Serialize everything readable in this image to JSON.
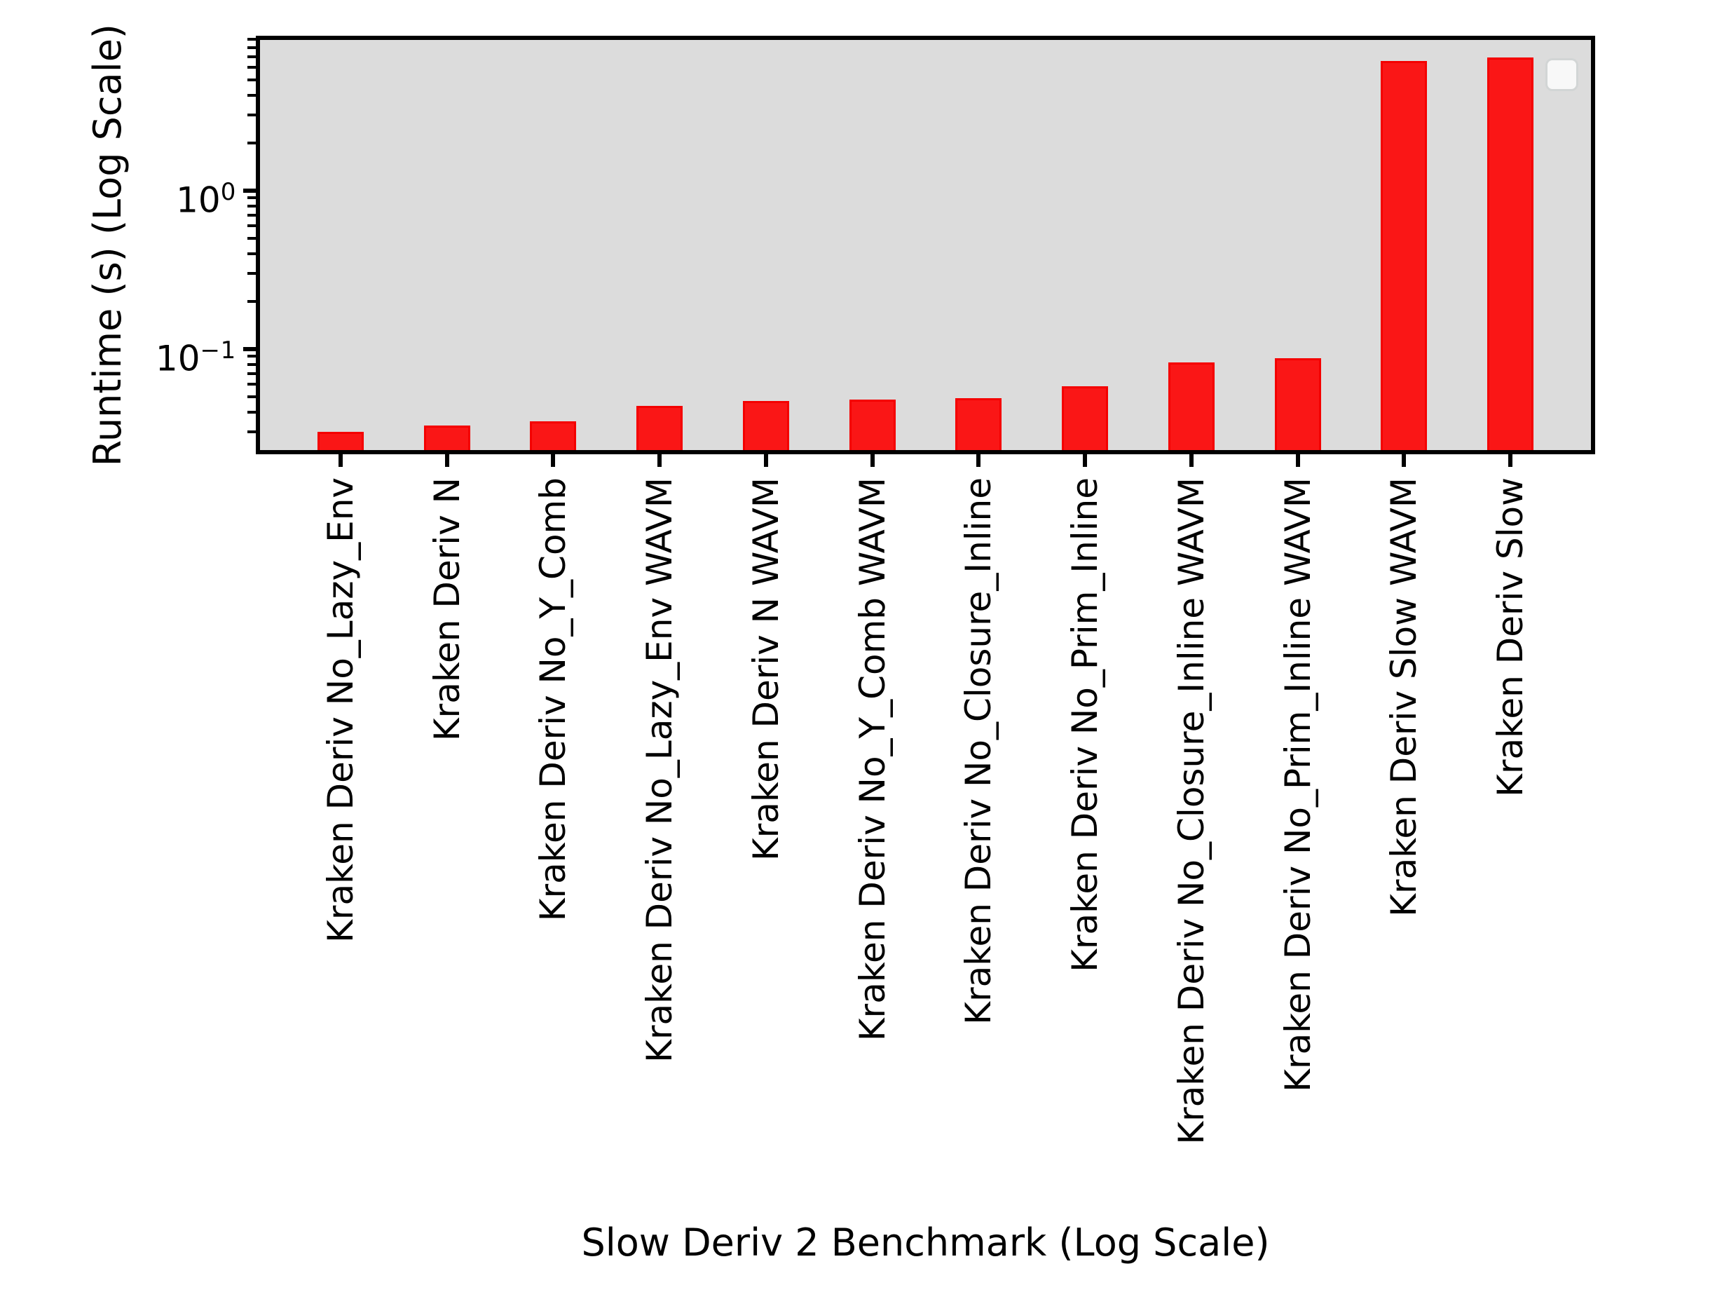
{
  "chart_data": {
    "type": "bar",
    "title": "",
    "xlabel": "Slow Deriv 2 Benchmark (Log Scale)",
    "ylabel": "Runtime (s) (Log Scale)",
    "yscale": "log",
    "ylim": [
      0.023,
      9.1
    ],
    "grid": false,
    "plot_background": "#dcdcdc",
    "bar_fill_color": "#fa1616",
    "bar_edge_color": "#f40000",
    "axis_color": "#000000",
    "legend": {
      "visible": true,
      "position": "upper right",
      "entries": []
    },
    "categories": [
      "Kraken Deriv No_Lazy_Env",
      "Kraken Deriv N",
      "Kraken Deriv No_Y_Comb",
      "Kraken Deriv No_Lazy_Env WAVM",
      "Kraken Deriv N WAVM",
      "Kraken Deriv No_Y_Comb WAVM",
      "Kraken Deriv No_Closure_Inline",
      "Kraken Deriv No_Prim_Inline",
      "Kraken Deriv No_Closure_Inline WAVM",
      "Kraken Deriv No_Prim_Inline WAVM",
      "Kraken Deriv Slow WAVM",
      "Kraken Deriv Slow"
    ],
    "values": [
      0.03,
      0.033,
      0.035,
      0.044,
      0.047,
      0.048,
      0.049,
      0.058,
      0.082,
      0.088,
      6.6,
      6.9
    ],
    "y_major_ticks": [
      {
        "value": 1,
        "mantissa": "10",
        "exponent": "0"
      },
      {
        "value": 0.1,
        "mantissa": "10",
        "exponent": "−1"
      }
    ]
  }
}
